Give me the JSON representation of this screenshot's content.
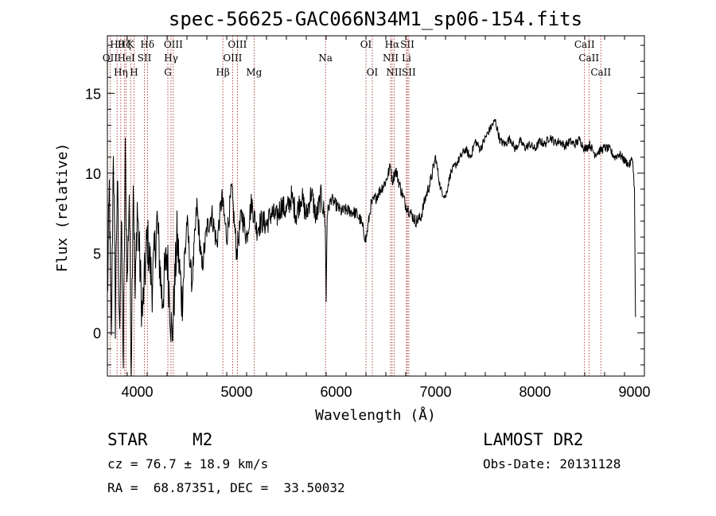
{
  "chart_data": {
    "type": "line",
    "title": "spec-56625-GAC066N34M1_sp06-154.fits",
    "xlabel": "Wavelength (Å)",
    "ylabel": "Flux (relative)",
    "xlim": [
      3700,
      9100
    ],
    "ylim": [
      -2.7,
      18.6
    ],
    "xticks": [
      4000,
      5000,
      6000,
      7000,
      8000,
      9000
    ],
    "xtick_labels": [
      "4000",
      "5000",
      "6000",
      "7000",
      "8000",
      "9000"
    ],
    "yticks": [
      0,
      5,
      10,
      15
    ],
    "ytick_labels": [
      "0",
      "5",
      "10",
      "15"
    ],
    "grid": false,
    "series": [
      {
        "color": "#000000",
        "x": [
          3700,
          3720,
          3740,
          3760,
          3780,
          3800,
          3820,
          3840,
          3860,
          3880,
          3900,
          3920,
          3940,
          3960,
          3980,
          4000,
          4050,
          4100,
          4150,
          4200,
          4250,
          4300,
          4350,
          4400,
          4450,
          4500,
          4550,
          4600,
          4650,
          4700,
          4750,
          4800,
          4850,
          4900,
          4950,
          5000,
          5050,
          5100,
          5150,
          5200,
          5250,
          5300,
          5350,
          5400,
          5450,
          5500,
          5550,
          5600,
          5650,
          5700,
          5750,
          5800,
          5850,
          5890,
          5900,
          5910,
          5950,
          6000,
          6050,
          6100,
          6150,
          6200,
          6250,
          6300,
          6350,
          6400,
          6450,
          6500,
          6550,
          6563,
          6600,
          6650,
          6700,
          6750,
          6800,
          6850,
          6900,
          6950,
          7000,
          7050,
          7100,
          7150,
          7200,
          7250,
          7300,
          7350,
          7400,
          7450,
          7500,
          7550,
          7600,
          7650,
          7700,
          7750,
          7800,
          7850,
          7900,
          7950,
          8000,
          8050,
          8100,
          8150,
          8200,
          8250,
          8300,
          8350,
          8400,
          8450,
          8500,
          8550,
          8600,
          8650,
          8700,
          8750,
          8800,
          8850,
          8900,
          8950,
          8980,
          9000,
          9010
        ],
        "y": [
          2,
          9,
          -1,
          12,
          1,
          10,
          0,
          7,
          -2,
          11,
          3,
          9,
          -2,
          10,
          2,
          8,
          1,
          6,
          3,
          7,
          2,
          5,
          -0.5,
          6,
          2,
          7,
          3,
          8,
          4,
          6.5,
          7.5,
          5.5,
          8.5,
          6,
          9,
          5,
          7.5,
          6,
          8.2,
          6.5,
          7,
          6.8,
          7.5,
          7.2,
          8,
          7.6,
          8.5,
          7.4,
          8.6,
          7.3,
          8.8,
          7.2,
          8.6,
          7.0,
          2,
          7.5,
          8.4,
          8,
          7.6,
          7.7,
          7.6,
          7.5,
          7.0,
          5.8,
          8.0,
          8.5,
          9.0,
          9.5,
          10.5,
          9.5,
          10.2,
          9.0,
          8.0,
          7.5,
          7.0,
          7.2,
          8.5,
          9.5,
          11.0,
          9.0,
          8.5,
          10.0,
          10.5,
          11.0,
          11.5,
          11.0,
          12.0,
          11.5,
          12.2,
          12.8,
          13.3,
          12.0,
          11.8,
          12.2,
          11.5,
          12.0,
          11.6,
          11.8,
          11.5,
          12.0,
          11.8,
          12.3,
          11.9,
          12.0,
          11.7,
          12.0,
          11.8,
          12.1,
          11.5,
          11.8,
          11.2,
          11.4,
          11.6,
          11.5,
          11.0,
          11.2,
          10.8,
          10.5,
          11.0,
          9.0,
          1.0
        ]
      }
    ],
    "line_markers": [
      {
        "x": 3727,
        "label": "OII",
        "row": 1
      },
      {
        "x": 3797,
        "label": "Hθ",
        "row": 0
      },
      {
        "x": 3835,
        "label": "Hη",
        "row": 2
      },
      {
        "x": 3870,
        "label": "Hζ",
        "row": 0
      },
      {
        "x": 3889,
        "label": "HeI",
        "row": 1
      },
      {
        "x": 3934,
        "label": "K",
        "row": 0
      },
      {
        "x": 3968,
        "label": "H",
        "row": 2
      },
      {
        "x": 4072,
        "label": "SII",
        "row": 1
      },
      {
        "x": 4102,
        "label": "Hδ",
        "row": 0
      },
      {
        "x": 4308,
        "label": "G",
        "row": 2
      },
      {
        "x": 4340,
        "label": "Hγ",
        "row": 1
      },
      {
        "x": 4363,
        "label": "OIII",
        "row": 0
      },
      {
        "x": 4861,
        "label": "Hβ",
        "row": 2
      },
      {
        "x": 4959,
        "label": "OIII",
        "row": 1
      },
      {
        "x": 5007,
        "label": "OIII",
        "row": 0
      },
      {
        "x": 5175,
        "label": "Mg",
        "row": 2
      },
      {
        "x": 5893,
        "label": "Na",
        "row": 1
      },
      {
        "x": 6300,
        "label": "OI",
        "row": 0
      },
      {
        "x": 6364,
        "label": "OI",
        "row": 2
      },
      {
        "x": 6548,
        "label": "NII",
        "row": 1
      },
      {
        "x": 6563,
        "label": "Hα",
        "row": 0
      },
      {
        "x": 6583,
        "label": "NII",
        "row": 2
      },
      {
        "x": 6707,
        "label": "Li",
        "row": 1
      },
      {
        "x": 6716,
        "label": "SII",
        "row": 0
      },
      {
        "x": 6731,
        "label": "SII",
        "row": 2
      },
      {
        "x": 8498,
        "label": "CaII",
        "row": 0
      },
      {
        "x": 8542,
        "label": "CaII",
        "row": 1
      },
      {
        "x": 8662,
        "label": "CaII",
        "row": 2
      }
    ]
  },
  "info": {
    "class": "STAR",
    "subclass": "M2",
    "survey": "LAMOST DR2",
    "cz": "cz = 76.7 ± 18.9 km/s",
    "obs_date": "Obs-Date: 20131128",
    "radec": "RA =  68.87351, DEC =  33.50032"
  },
  "colors": {
    "marker_line": "#a01818",
    "spectrum": "#000000",
    "axes": "#000000"
  }
}
